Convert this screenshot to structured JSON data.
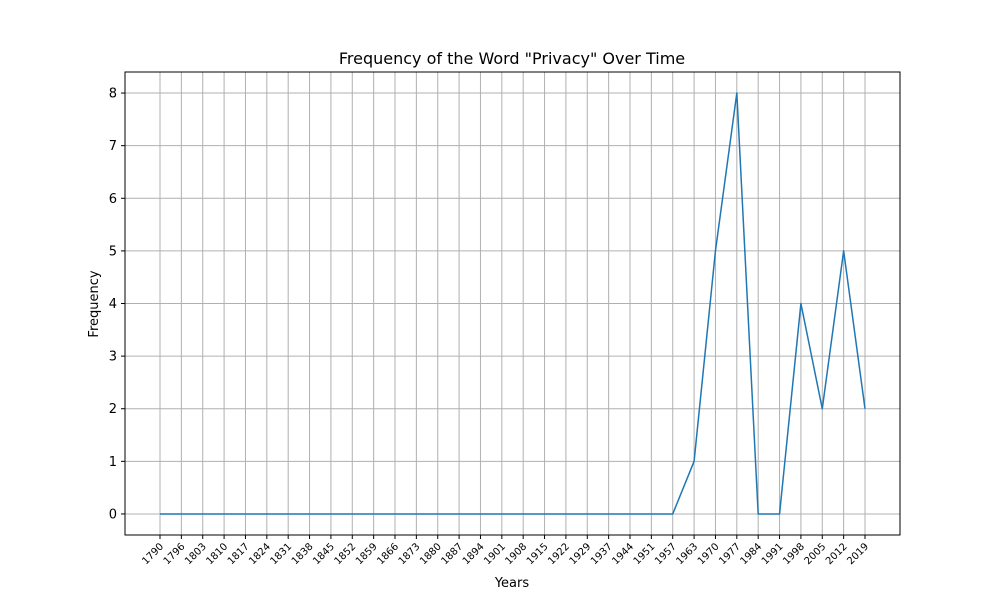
{
  "chart_data": {
    "type": "line",
    "title": "Frequency of the Word \"Privacy\" Over Time",
    "xlabel": "Years",
    "ylabel": "Frequency",
    "x": [
      "1790",
      "1796",
      "1803",
      "1810",
      "1817",
      "1824",
      "1831",
      "1838",
      "1845",
      "1852",
      "1859",
      "1866",
      "1873",
      "1880",
      "1887",
      "1894",
      "1901",
      "1908",
      "1915",
      "1922",
      "1929",
      "1937",
      "1944",
      "1951",
      "1957",
      "1963",
      "1970",
      "1977",
      "1984",
      "1991",
      "1998",
      "2005",
      "2012",
      "2019"
    ],
    "series": [
      {
        "values": [
          0,
          0,
          0,
          0,
          0,
          0,
          0,
          0,
          0,
          0,
          0,
          0,
          0,
          0,
          0,
          0,
          0,
          0,
          0,
          0,
          0,
          0,
          0,
          0,
          0,
          1,
          5,
          8,
          0,
          0,
          4,
          2,
          5,
          2
        ]
      }
    ],
    "ylim": [
      -0.4,
      8.4
    ],
    "yticks": [
      0,
      1,
      2,
      3,
      4,
      5,
      6,
      7,
      8
    ],
    "grid": true,
    "line_color": "#1f77b4"
  }
}
